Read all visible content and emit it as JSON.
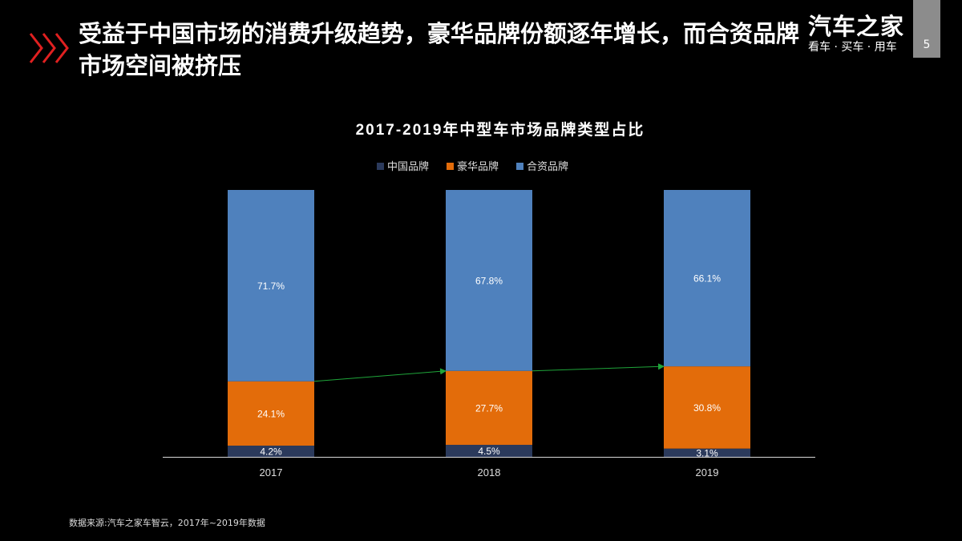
{
  "header": {
    "title": "受益于中国市场的消费升级趋势，豪华品牌份额逐年增长，而合资品牌市场空间被挤压",
    "logo_main": "汽车之家",
    "logo_sub": "看车 · 买车 · 用车",
    "page_number": "5",
    "chevron_icon": "triple-chevron-right-icon",
    "accent_color": "#e02020"
  },
  "chart_data": {
    "type": "bar",
    "stacked": true,
    "title": "2017-2019年中型车市场品牌类型占比",
    "categories": [
      "2017",
      "2018",
      "2019"
    ],
    "series": [
      {
        "name": "中国品牌",
        "color": "#2b3a5c",
        "values": [
          4.2,
          4.5,
          3.1
        ],
        "labels": [
          "4.2%",
          "4.5%",
          "3.1%"
        ]
      },
      {
        "name": "豪华品牌",
        "color": "#e36c0a",
        "values": [
          24.1,
          27.7,
          30.8
        ],
        "labels": [
          "24.1%",
          "27.7%",
          "30.8%"
        ]
      },
      {
        "name": "合资品牌",
        "color": "#4f81bd",
        "values": [
          71.7,
          67.8,
          66.1
        ],
        "labels": [
          "71.7%",
          "67.8%",
          "66.1%"
        ]
      }
    ],
    "ylim": [
      0,
      100
    ],
    "legend": "top",
    "grid": false,
    "annotation": "green trend arrows connecting tops of 豪华品牌 segments",
    "annotation_color": "#1fa53a"
  },
  "footer": {
    "source": "数据来源:汽车之家车智云，2017年~2019年数据"
  }
}
